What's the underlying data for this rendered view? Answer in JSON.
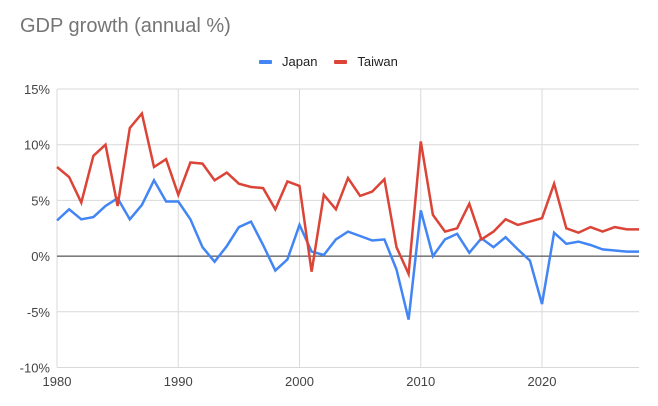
{
  "chart": {
    "title": "GDP growth (annual %)",
    "legend": [
      {
        "label": "Japan",
        "color": "#4285f4"
      },
      {
        "label": "Taiwan",
        "color": "#db4437"
      }
    ]
  },
  "chart_data": {
    "type": "line",
    "title": "GDP growth (annual %)",
    "xlabel": "",
    "ylabel": "",
    "x": [
      1980,
      1981,
      1982,
      1983,
      1984,
      1985,
      1986,
      1987,
      1988,
      1989,
      1990,
      1991,
      1992,
      1993,
      1994,
      1995,
      1996,
      1997,
      1998,
      1999,
      2000,
      2001,
      2002,
      2003,
      2004,
      2005,
      2006,
      2007,
      2008,
      2009,
      2010,
      2011,
      2012,
      2013,
      2014,
      2015,
      2016,
      2017,
      2018,
      2019,
      2020,
      2021,
      2022,
      2023,
      2024,
      2025,
      2026,
      2027,
      2028
    ],
    "series": [
      {
        "name": "Japan",
        "color": "#4285f4",
        "values": [
          3.2,
          4.2,
          3.3,
          3.5,
          4.5,
          5.2,
          3.3,
          4.6,
          6.8,
          4.9,
          4.9,
          3.3,
          0.8,
          -0.5,
          0.9,
          2.6,
          3.1,
          1.0,
          -1.3,
          -0.3,
          2.8,
          0.4,
          0.1,
          1.5,
          2.2,
          1.8,
          1.4,
          1.5,
          -1.2,
          -5.7,
          4.1,
          0.0,
          1.5,
          2.0,
          0.3,
          1.6,
          0.8,
          1.7,
          0.6,
          -0.4,
          -4.3,
          2.1,
          1.1,
          1.3,
          1.0,
          0.6,
          0.5,
          0.4,
          0.4
        ]
      },
      {
        "name": "Taiwan",
        "color": "#db4437",
        "values": [
          8.0,
          7.1,
          4.8,
          9.0,
          10.0,
          4.5,
          11.5,
          12.8,
          8.0,
          8.7,
          5.5,
          8.4,
          8.3,
          6.8,
          7.5,
          6.5,
          6.2,
          6.1,
          4.2,
          6.7,
          6.3,
          -1.4,
          5.5,
          4.2,
          7.0,
          5.4,
          5.8,
          6.9,
          0.8,
          -1.6,
          10.3,
          3.7,
          2.2,
          2.5,
          4.7,
          1.5,
          2.2,
          3.3,
          2.8,
          3.1,
          3.4,
          6.5,
          2.5,
          2.1,
          2.6,
          2.2,
          2.6,
          2.4,
          2.4
        ]
      }
    ],
    "xlim": [
      1980,
      2028
    ],
    "ylim": [
      -10,
      15
    ],
    "x_ticks": [
      1980,
      1990,
      2000,
      2010,
      2020
    ],
    "y_ticks": [
      -10,
      -5,
      0,
      5,
      10,
      15
    ],
    "y_tick_labels": [
      "-10%",
      "-5%",
      "0%",
      "5%",
      "10%",
      "15%"
    ],
    "x_tick_labels": [
      "1980",
      "1990",
      "2000",
      "2010",
      "2020"
    ],
    "grid": true,
    "legend_position": "top"
  }
}
